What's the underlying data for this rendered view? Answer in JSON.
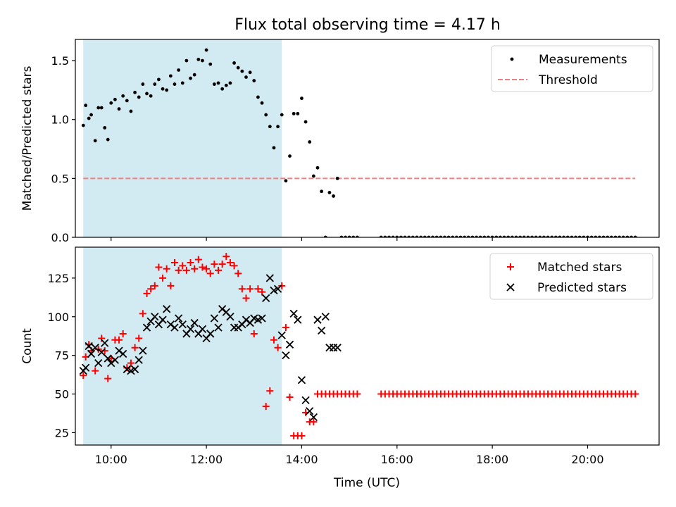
{
  "title": "Flux total observing time = 4.17 h",
  "xlabel": "Time (UTC)",
  "x_ticks": [
    "10:00",
    "12:00",
    "14:00",
    "16:00",
    "18:00",
    "20:00"
  ],
  "colors": {
    "span": "#add8e6",
    "threshold": "#f08080",
    "matched": "#ff0000",
    "predicted": "#000000",
    "measurements": "#000000"
  },
  "chart_data": [
    {
      "type": "scatter",
      "ylabel": "Matched/Predicted stars",
      "xlim": [
        "09:15",
        "21:30"
      ],
      "ylim": [
        0,
        1.68
      ],
      "y_ticks": [
        0.0,
        0.5,
        1.0,
        1.5
      ],
      "y_tick_labels": [
        "0.0",
        "0.5",
        "1.0",
        "1.5"
      ],
      "shaded_span": [
        "09:25",
        "13:35"
      ],
      "threshold": 0.5,
      "threshold_x": [
        "09:25",
        "21:00"
      ],
      "legend_position": "upper right",
      "series": [
        {
          "name": "Measurements",
          "marker": "dot",
          "x": [
            "09:25",
            "09:28",
            "09:32",
            "09:35",
            "09:40",
            "09:44",
            "09:48",
            "09:52",
            "09:56",
            "10:00",
            "10:05",
            "10:10",
            "10:15",
            "10:20",
            "10:25",
            "10:30",
            "10:35",
            "10:40",
            "10:45",
            "10:50",
            "10:55",
            "11:00",
            "11:05",
            "11:10",
            "11:15",
            "11:20",
            "11:25",
            "11:30",
            "11:35",
            "11:40",
            "11:45",
            "11:50",
            "11:55",
            "12:00",
            "12:05",
            "12:10",
            "12:15",
            "12:20",
            "12:25",
            "12:30",
            "12:35",
            "12:40",
            "12:45",
            "12:50",
            "12:55",
            "13:00",
            "13:05",
            "13:10",
            "13:15",
            "13:20",
            "13:25",
            "13:30",
            "13:35",
            "13:40",
            "13:45",
            "13:50",
            "13:55",
            "14:00",
            "14:05",
            "14:10",
            "14:15",
            "14:20",
            "14:25",
            "14:30",
            "14:35",
            "14:40",
            "14:45",
            "14:50",
            "14:55",
            "15:00",
            "15:05",
            "15:10",
            "15:40",
            "15:45",
            "15:50",
            "15:55",
            "16:00",
            "16:05",
            "16:10",
            "16:15",
            "16:20",
            "16:25",
            "16:30",
            "16:35",
            "16:40",
            "16:45",
            "16:50",
            "16:55",
            "17:00",
            "17:05",
            "17:10",
            "17:15",
            "17:20",
            "17:25",
            "17:30",
            "17:35",
            "17:40",
            "17:45",
            "17:50",
            "17:55",
            "18:00",
            "18:05",
            "18:10",
            "18:15",
            "18:20",
            "18:25",
            "18:30",
            "18:35",
            "18:40",
            "18:45",
            "18:50",
            "18:55",
            "19:00",
            "19:05",
            "19:10",
            "19:15",
            "19:20",
            "19:25",
            "19:30",
            "19:35",
            "19:40",
            "19:45",
            "19:50",
            "19:55",
            "20:00",
            "20:05",
            "20:10",
            "20:15",
            "20:20",
            "20:25",
            "20:30",
            "20:35",
            "20:40",
            "20:45",
            "20:50",
            "20:55",
            "21:00"
          ],
          "y": [
            0.95,
            1.12,
            1.01,
            1.04,
            0.82,
            1.1,
            1.1,
            0.93,
            0.83,
            1.14,
            1.17,
            1.09,
            1.2,
            1.16,
            1.07,
            1.23,
            1.19,
            1.3,
            1.22,
            1.2,
            1.3,
            1.34,
            1.26,
            1.25,
            1.37,
            1.3,
            1.42,
            1.31,
            1.5,
            1.35,
            1.38,
            1.51,
            1.5,
            1.59,
            1.47,
            1.3,
            1.31,
            1.26,
            1.29,
            1.31,
            1.48,
            1.44,
            1.41,
            1.36,
            1.4,
            1.33,
            1.19,
            1.14,
            1.04,
            0.94,
            0.76,
            0.94,
            1.04,
            0.48,
            0.69,
            1.05,
            1.05,
            1.18,
            0.98,
            0.81,
            0.52,
            0.59,
            0.39,
            0.0,
            0.38,
            0.35,
            0.5,
            0.0,
            0.0,
            0.0,
            0.0,
            0.0,
            0.0,
            0.0,
            0.0,
            0.0,
            0.0,
            0.0,
            0.0,
            0.0,
            0.0,
            0.0,
            0.0,
            0.0,
            0.0,
            0.0,
            0.0,
            0.0,
            0.0,
            0.0,
            0.0,
            0.0,
            0.0,
            0.0,
            0.0,
            0.0,
            0.0,
            0.0,
            0.0,
            0.0,
            0.0,
            0.0,
            0.0,
            0.0,
            0.0,
            0.0,
            0.0,
            0.0,
            0.0,
            0.0,
            0.0,
            0.0,
            0.0,
            0.0,
            0.0,
            0.0,
            0.0,
            0.0,
            0.0,
            0.0,
            0.0,
            0.0,
            0.0,
            0.0,
            0.0,
            0.0,
            0.0,
            0.0,
            0.0,
            0.0,
            0.0,
            0.0,
            0.0,
            0.0,
            0.0,
            0.0,
            0.0
          ]
        },
        {
          "name": "Threshold",
          "style": "dashed line"
        }
      ]
    },
    {
      "type": "scatter",
      "ylabel": "Count",
      "xlim": [
        "09:15",
        "21:30"
      ],
      "ylim": [
        17,
        145
      ],
      "y_ticks": [
        25,
        50,
        75,
        100,
        125
      ],
      "y_tick_labels": [
        "25",
        "50",
        "75",
        "100",
        "125"
      ],
      "shaded_span": [
        "09:25",
        "13:35"
      ],
      "legend_position": "upper right",
      "series": [
        {
          "name": "Matched stars",
          "marker": "plus",
          "x": [
            "09:25",
            "09:28",
            "09:32",
            "09:35",
            "09:40",
            "09:44",
            "09:48",
            "09:52",
            "09:56",
            "10:00",
            "10:05",
            "10:10",
            "10:15",
            "10:20",
            "10:25",
            "10:30",
            "10:35",
            "10:40",
            "10:45",
            "10:50",
            "10:55",
            "11:00",
            "11:05",
            "11:10",
            "11:15",
            "11:20",
            "11:25",
            "11:30",
            "11:35",
            "11:40",
            "11:45",
            "11:50",
            "11:55",
            "12:00",
            "12:05",
            "12:10",
            "12:15",
            "12:20",
            "12:25",
            "12:30",
            "12:35",
            "12:40",
            "12:45",
            "12:50",
            "12:55",
            "13:00",
            "13:05",
            "13:10",
            "13:15",
            "13:20",
            "13:25",
            "13:30",
            "13:35",
            "13:40",
            "13:45",
            "13:50",
            "13:55",
            "14:00",
            "14:05",
            "14:10",
            "14:15",
            "14:20",
            "14:25",
            "14:30",
            "14:35",
            "14:40",
            "14:45",
            "14:50",
            "14:55",
            "15:00",
            "15:05",
            "15:10",
            "15:40",
            "15:45",
            "15:50",
            "15:55",
            "16:00",
            "16:05",
            "16:10",
            "16:15",
            "16:20",
            "16:25",
            "16:30",
            "16:35",
            "16:40",
            "16:45",
            "16:50",
            "16:55",
            "17:00",
            "17:05",
            "17:10",
            "17:15",
            "17:20",
            "17:25",
            "17:30",
            "17:35",
            "17:40",
            "17:45",
            "17:50",
            "17:55",
            "18:00",
            "18:05",
            "18:10",
            "18:15",
            "18:20",
            "18:25",
            "18:30",
            "18:35",
            "18:40",
            "18:45",
            "18:50",
            "18:55",
            "19:00",
            "19:05",
            "19:10",
            "19:15",
            "19:20",
            "19:25",
            "19:30",
            "19:35",
            "19:40",
            "19:45",
            "19:50",
            "19:55",
            "20:00",
            "20:05",
            "20:10",
            "20:15",
            "20:20",
            "20:25",
            "20:30",
            "20:35",
            "20:40",
            "20:45",
            "20:50",
            "20:55",
            "21:00"
          ],
          "y": [
            62,
            74,
            82,
            78,
            65,
            79,
            86,
            78,
            60,
            73,
            85,
            85,
            89,
            67,
            70,
            80,
            86,
            102,
            115,
            118,
            120,
            132,
            125,
            131,
            120,
            135,
            130,
            133,
            130,
            135,
            131,
            137,
            132,
            131,
            128,
            134,
            130,
            134,
            139,
            135,
            133,
            128,
            118,
            112,
            118,
            89,
            118,
            116,
            42,
            52,
            85,
            80,
            120,
            93,
            48,
            23,
            23,
            23,
            38,
            32,
            32,
            50,
            50,
            50,
            50,
            50,
            50,
            50,
            50,
            50,
            50,
            50,
            50,
            50,
            50,
            50,
            50,
            50,
            50,
            50,
            50,
            50,
            50,
            50,
            50,
            50,
            50,
            50,
            50,
            50,
            50,
            50,
            50,
            50,
            50,
            50,
            50,
            50,
            50,
            50,
            50,
            50,
            50,
            50,
            50,
            50,
            50,
            50,
            50,
            50,
            50,
            50,
            50,
            50,
            50,
            50,
            50,
            50,
            50,
            50,
            50,
            50,
            50,
            50,
            50,
            50,
            50,
            50,
            50,
            50,
            50,
            50,
            50,
            50,
            50,
            50,
            50
          ]
        },
        {
          "name": "Predicted stars",
          "marker": "x",
          "x": [
            "09:25",
            "09:28",
            "09:32",
            "09:35",
            "09:40",
            "09:44",
            "09:48",
            "09:52",
            "09:56",
            "10:00",
            "10:05",
            "10:10",
            "10:15",
            "10:20",
            "10:25",
            "10:30",
            "10:35",
            "10:40",
            "10:45",
            "10:50",
            "10:55",
            "11:00",
            "11:05",
            "11:10",
            "11:15",
            "11:20",
            "11:25",
            "11:30",
            "11:35",
            "11:40",
            "11:45",
            "11:50",
            "11:55",
            "12:00",
            "12:05",
            "12:10",
            "12:15",
            "12:20",
            "12:25",
            "12:30",
            "12:35",
            "12:40",
            "12:45",
            "12:50",
            "12:55",
            "13:00",
            "13:05",
            "13:10",
            "13:15",
            "13:20",
            "13:25",
            "13:30",
            "13:35",
            "13:40",
            "13:45",
            "13:50",
            "13:55",
            "14:00",
            "14:05",
            "14:10",
            "14:15",
            "14:20",
            "14:25",
            "14:30",
            "14:35",
            "14:40",
            "14:45"
          ],
          "y": [
            65,
            67,
            81,
            76,
            80,
            70,
            77,
            83,
            73,
            70,
            72,
            78,
            76,
            66,
            65,
            66,
            72,
            78,
            93,
            97,
            100,
            95,
            98,
            105,
            95,
            93,
            99,
            95,
            89,
            92,
            96,
            89,
            92,
            86,
            89,
            99,
            93,
            105,
            103,
            100,
            93,
            93,
            95,
            98,
            96,
            99,
            98,
            99,
            112,
            125,
            117,
            118,
            88,
            75,
            82,
            102,
            98,
            59,
            46,
            39,
            35,
            98,
            91,
            100,
            80,
            80,
            80
          ]
        }
      ]
    }
  ]
}
